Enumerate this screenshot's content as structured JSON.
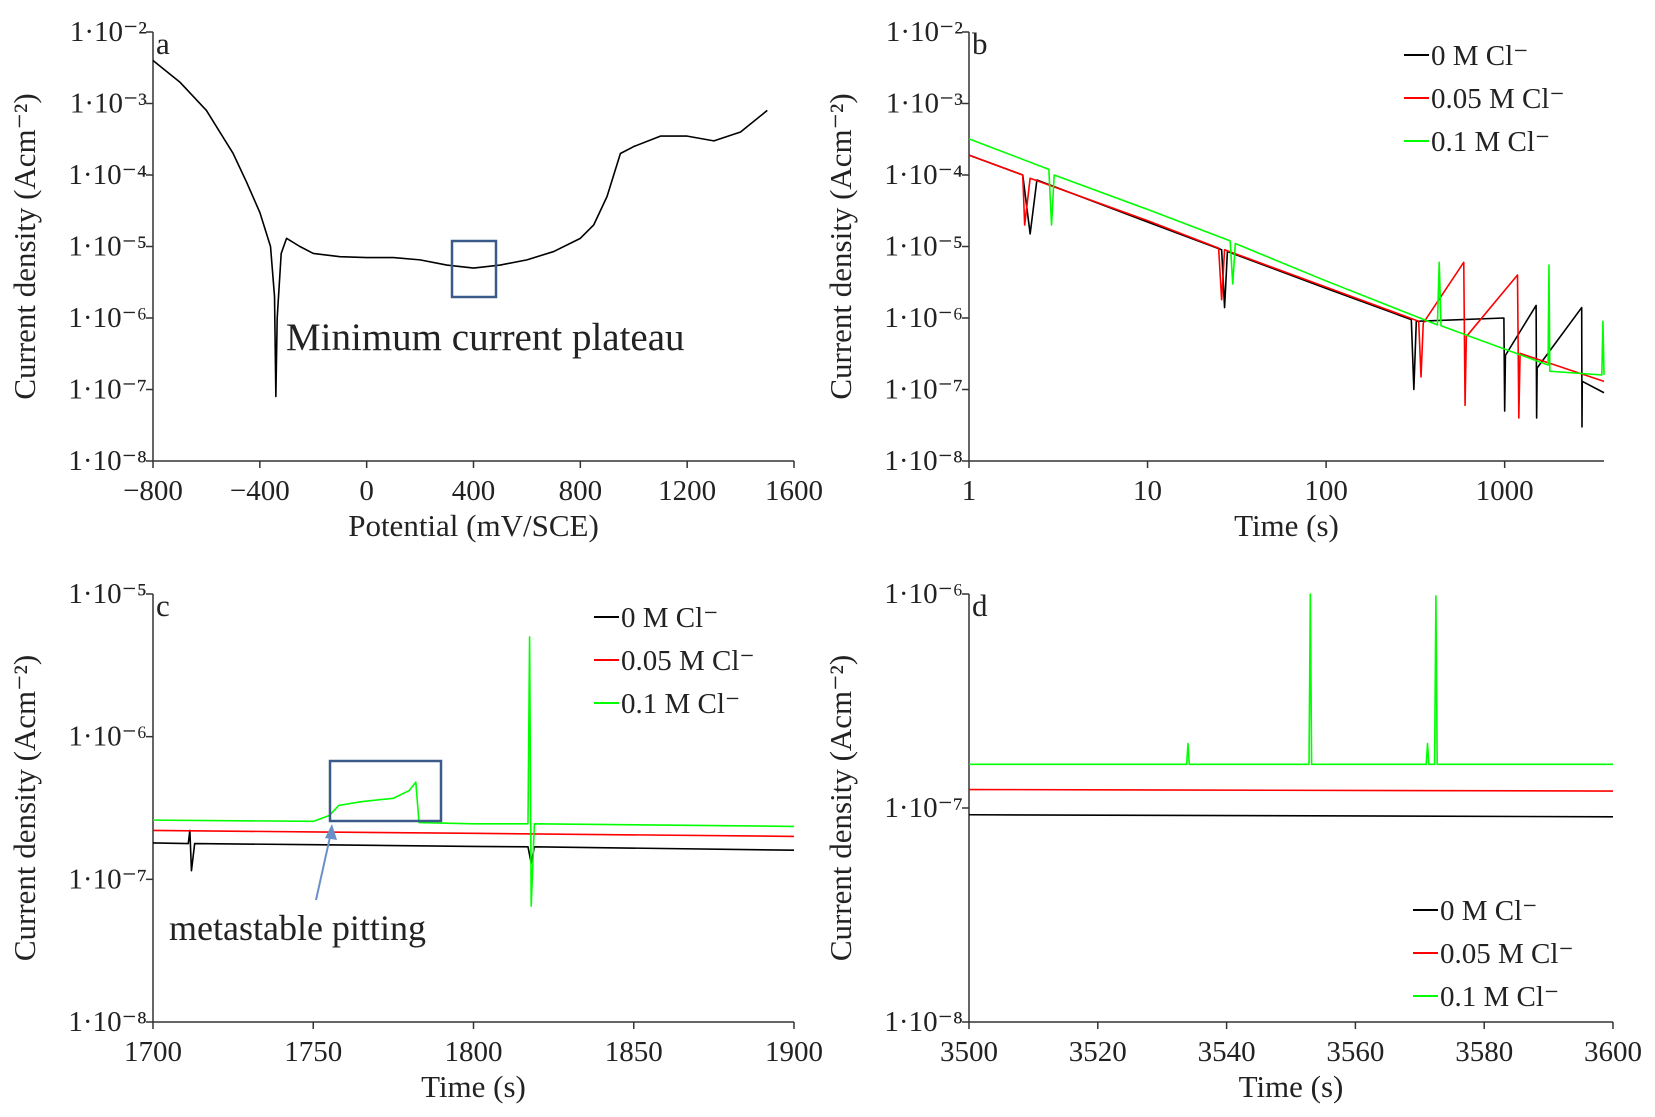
{
  "chart_data": [
    {
      "type": "line",
      "label": "a",
      "xlabel": "Potential (mV/SCE)",
      "ylabel": "Current density (Acm⁻²)",
      "xlim": [
        -800,
        1600
      ],
      "ylim": [
        1e-08,
        0.01
      ],
      "yscale": "log",
      "xticks": [
        {
          "value": -800,
          "label": "−800"
        },
        {
          "value": -400,
          "label": "−400"
        },
        0,
        400,
        800,
        1200,
        1600
      ],
      "yticks": [
        {
          "value": 1e-08,
          "label": "1·10⁻⁸"
        },
        {
          "value": 1e-07,
          "label": "1·10⁻⁷"
        },
        {
          "value": 1e-06,
          "label": "1·10⁻⁶"
        },
        {
          "value": 1e-05,
          "label": "1·10⁻⁵"
        },
        {
          "value": 0.0001,
          "label": "1·10⁻⁴"
        },
        {
          "value": 0.001,
          "label": "1·10⁻³"
        },
        {
          "value": 0.01,
          "label": "1·10⁻²"
        }
      ],
      "annotation": "Minimum current plateau",
      "series": [
        {
          "color": "#000000",
          "x": [
            -800,
            -700,
            -600,
            -500,
            -450,
            -400,
            -360,
            -345,
            -340,
            -335,
            -320,
            -300,
            -250,
            -200,
            -100,
            0,
            100,
            200,
            300,
            400,
            500,
            600,
            700,
            800,
            850,
            900,
            950,
            1000,
            1100,
            1200,
            1300,
            1400,
            1500
          ],
          "values": [
            0.004,
            0.002,
            0.0008,
            0.0002,
            8e-05,
            3e-05,
            1e-05,
            2e-06,
            8e-08,
            1e-06,
            8e-06,
            1.3e-05,
            1e-05,
            8e-06,
            7.2e-06,
            7e-06,
            7e-06,
            6.5e-06,
            5.5e-06,
            5e-06,
            5.5e-06,
            6.5e-06,
            8.5e-06,
            1.3e-05,
            2e-05,
            5e-05,
            0.0002,
            0.00025,
            0.00035,
            0.00035,
            0.0003,
            0.0004,
            0.0008
          ]
        }
      ]
    },
    {
      "type": "line",
      "label": "b",
      "xlabel": "Time (s)",
      "ylabel": "Current density (Acm⁻²)",
      "xlim": [
        1,
        3600
      ],
      "ylim": [
        1e-08,
        0.01
      ],
      "xscale": "log",
      "yscale": "log",
      "legend": "upper right",
      "xticks": [
        1,
        10,
        100,
        1000
      ],
      "yticks": [
        {
          "value": 1e-08,
          "label": "1·10⁻⁸"
        },
        {
          "value": 1e-07,
          "label": "1·10⁻⁷"
        },
        {
          "value": 1e-06,
          "label": "1·10⁻⁶"
        },
        {
          "value": 1e-05,
          "label": "1·10⁻⁵"
        },
        {
          "value": 0.0001,
          "label": "1·10⁻⁴"
        },
        {
          "value": 0.001,
          "label": "1·10⁻³"
        },
        {
          "value": 0.01,
          "label": "1·10⁻²"
        }
      ],
      "series": [
        {
          "name": "0 M Cl⁻",
          "color": "#000000",
          "x": [
            1,
            2,
            2.2,
            2.4,
            10,
            26,
            27,
            28,
            100,
            300,
            310,
            320,
            990,
            1000,
            1010,
            1500,
            1510,
            1520,
            2700,
            2710,
            2720,
            3600
          ],
          "values": [
            0.00019,
            0.0001,
            1.5e-05,
            8.5e-05,
            2.2e-05,
            9e-06,
            1.4e-06,
            8.5e-06,
            2.6e-06,
            9.5e-07,
            1e-07,
            9e-07,
            1e-06,
            5e-08,
            3e-07,
            1.5e-06,
            4e-08,
            2e-07,
            1.4e-06,
            3e-08,
            1.3e-07,
            9e-08
          ]
        },
        {
          "name": "0.05 M Cl⁻",
          "color": "#ff0000",
          "x": [
            1,
            2,
            2.05,
            2.2,
            10,
            25,
            26,
            27,
            100,
            330,
            340,
            350,
            590,
            600,
            610,
            1180,
            1200,
            1220,
            3600
          ],
          "values": [
            0.00019,
            0.0001,
            2e-05,
            9e-05,
            2.3e-05,
            9.5e-06,
            1.8e-06,
            9e-06,
            2.7e-06,
            9e-07,
            1.5e-07,
            8.5e-07,
            6e-06,
            6e-08,
            5.5e-07,
            4e-06,
            4e-08,
            3.2e-07,
            1.3e-07
          ]
        },
        {
          "name": "0.1 M Cl⁻",
          "color": "#00ff00",
          "x": [
            1,
            2.8,
            2.9,
            3,
            10,
            29,
            30,
            31,
            100,
            420,
            430,
            440,
            1750,
            1770,
            1790,
            3500,
            3550,
            3600
          ],
          "values": [
            0.00032,
            0.00012,
            2e-05,
            0.0001,
            3.3e-05,
            1.2e-05,
            3e-06,
            1.1e-05,
            3.3e-06,
            8e-07,
            6e-06,
            7.8e-07,
            2.2e-07,
            5.5e-06,
            1.8e-07,
            1.6e-07,
            9e-07,
            1.6e-07
          ]
        }
      ]
    },
    {
      "type": "line",
      "label": "c",
      "xlabel": "Time (s)",
      "ylabel": "Current density (Acm⁻²)",
      "xlim": [
        1700,
        1900
      ],
      "ylim": [
        1e-08,
        1e-05
      ],
      "yscale": "log",
      "legend": "upper right",
      "xticks": [
        1700,
        1750,
        1800,
        1850,
        1900
      ],
      "yticks": [
        {
          "value": 1e-08,
          "label": "1·10⁻⁸"
        },
        {
          "value": 1e-07,
          "label": "1·10⁻⁷"
        },
        {
          "value": 1e-06,
          "label": "1·10⁻⁶"
        },
        {
          "value": 1e-05,
          "label": "1·10⁻⁵"
        }
      ],
      "annotation": "metastable pitting",
      "series": [
        {
          "name": "0 M Cl⁻",
          "color": "#000000",
          "x": [
            1700,
            1711,
            1711.5,
            1712,
            1713,
            1750,
            1800,
            1817,
            1818,
            1819,
            1900
          ],
          "values": [
            1.8e-07,
            1.78e-07,
            2.2e-07,
            1.15e-07,
            1.78e-07,
            1.75e-07,
            1.7e-07,
            1.69e-07,
            1.3e-07,
            1.69e-07,
            1.6e-07
          ]
        },
        {
          "name": "0.05 M Cl⁻",
          "color": "#ff0000",
          "x": [
            1700,
            1750,
            1800,
            1900
          ],
          "values": [
            2.2e-07,
            2.15e-07,
            2.1e-07,
            2e-07
          ]
        },
        {
          "name": "0.1 M Cl⁻",
          "color": "#00ff00",
          "x": [
            1700,
            1750,
            1755,
            1758,
            1765,
            1775,
            1780,
            1782,
            1783,
            1800,
            1817,
            1817.5,
            1818,
            1819,
            1900
          ],
          "values": [
            2.6e-07,
            2.55e-07,
            2.8e-07,
            3.3e-07,
            3.5e-07,
            3.7e-07,
            4.2e-07,
            4.8e-07,
            2.5e-07,
            2.45e-07,
            2.45e-07,
            5e-06,
            6.5e-08,
            2.45e-07,
            2.35e-07
          ]
        }
      ]
    },
    {
      "type": "line",
      "label": "d",
      "xlabel": "Time (s)",
      "ylabel": "Current density (Acm⁻²)",
      "xlim": [
        3500,
        3600
      ],
      "ylim": [
        1e-08,
        1e-06
      ],
      "yscale": "log",
      "legend": "lower right",
      "xticks": [
        3500,
        3520,
        3540,
        3560,
        3580,
        3600
      ],
      "yticks": [
        {
          "value": 1e-08,
          "label": "1·10⁻⁸"
        },
        {
          "value": 1e-07,
          "label": "1·10⁻⁷"
        },
        {
          "value": 1e-06,
          "label": "1·10⁻⁶"
        }
      ],
      "series": [
        {
          "name": "0 M Cl⁻",
          "color": "#000000",
          "x": [
            3500,
            3600
          ],
          "values": [
            9.3e-08,
            9.1e-08
          ]
        },
        {
          "name": "0.05 M Cl⁻",
          "color": "#ff0000",
          "x": [
            3500,
            3600
          ],
          "values": [
            1.22e-07,
            1.2e-07
          ]
        },
        {
          "name": "0.1 M Cl⁻",
          "color": "#00ff00",
          "x": [
            3500,
            3533.8,
            3534,
            3534.2,
            3552.8,
            3553,
            3553.2,
            3571,
            3571.2,
            3571.4,
            3572.3,
            3572.5,
            3572.7,
            3600
          ],
          "values": [
            1.6e-07,
            1.6e-07,
            2e-07,
            1.6e-07,
            1.6e-07,
            1e-06,
            1.6e-07,
            1.6e-07,
            2e-07,
            1.6e-07,
            1.6e-07,
            9.8e-07,
            1.6e-07,
            1.6e-07
          ]
        }
      ]
    }
  ]
}
